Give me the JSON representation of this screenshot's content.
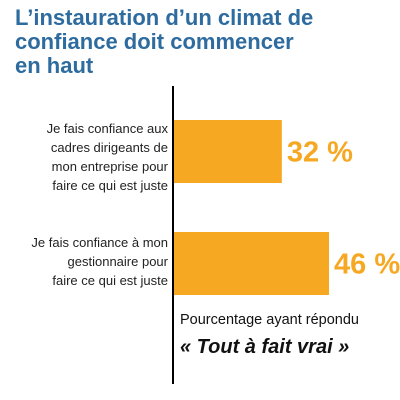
{
  "title_lines": [
    "L’instauration d’un climat de",
    "confiance doit commencer",
    "en haut"
  ],
  "colors": {
    "title": "#2e6b9e",
    "bar": "#f7a823",
    "value_label": "#f7a823",
    "axis": "#000000"
  },
  "footnote": {
    "subtitle": "Pourcentage ayant répondu",
    "answer": "« Tout à fait vrai »"
  },
  "chart_data": {
    "type": "bar",
    "orientation": "horizontal",
    "categories": [
      "Je fais confiance aux cadres dirigeants de mon entreprise pour faire ce qui est juste",
      "Je fais confiance à mon gestionnaire pour faire ce qui est juste"
    ],
    "category_label_lines": [
      [
        "Je fais confiance aux",
        "cadres dirigeants de",
        "mon entreprise pour",
        "faire ce qui est juste"
      ],
      [
        "Je fais confiance à mon",
        "gestionnaire pour",
        "faire ce qui est juste"
      ]
    ],
    "values": [
      32,
      46
    ],
    "value_labels": [
      "32 %",
      "46 %"
    ],
    "xlim": [
      0,
      100
    ],
    "grid": false,
    "legend": "none",
    "xlabel": "",
    "ylabel": ""
  }
}
